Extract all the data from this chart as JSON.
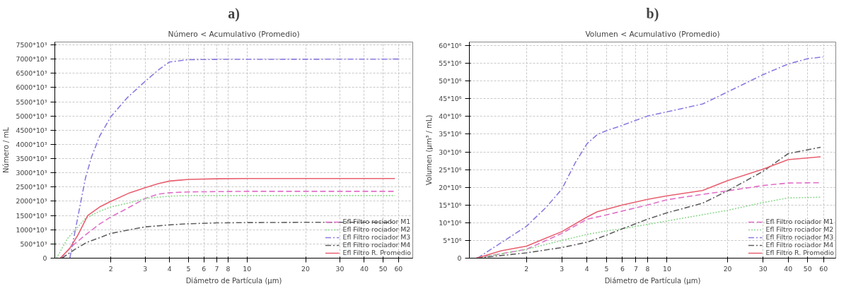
{
  "chart_data": [
    {
      "type": "line",
      "title": "a)",
      "subtitle": "Número < Acumulativo (Promedio)",
      "xlabel": "Diámetro de Partícula (µm)",
      "ylabel": "Número / mL",
      "log": "x",
      "grid": true,
      "legend": "bottom right",
      "xlim": [
        1.03,
        71
      ],
      "xticks": [
        2,
        3,
        4,
        5,
        6,
        7,
        8,
        10,
        20,
        30,
        40,
        50,
        60
      ],
      "ylim": [
        0,
        7600000
      ],
      "yticks": [
        0,
        {
          "value": 500000,
          "label": "500*10³"
        },
        {
          "value": 1000000,
          "label": "1000*10³"
        },
        {
          "value": 1500000,
          "label": "1500*10³"
        },
        {
          "value": 2000000,
          "label": "2000*10³"
        },
        {
          "value": 2500000,
          "label": "2500*10³"
        },
        {
          "value": 3000000,
          "label": "3000*10³"
        },
        {
          "value": 3500000,
          "label": "3500*10³"
        },
        {
          "value": 4000000,
          "label": "4000*10³"
        },
        {
          "value": 4500000,
          "label": "4500*10³"
        },
        {
          "value": 5000000,
          "label": "5000*10³"
        },
        {
          "value": 5500000,
          "label": "5500*10³"
        },
        {
          "value": 6000000,
          "label": "6000*10³"
        },
        {
          "value": 6500000,
          "label": "6500*10³"
        },
        {
          "value": 7000000,
          "label": "7000*10³"
        },
        {
          "value": 7500000,
          "label": "7500*10³"
        }
      ],
      "series": [
        {
          "name": "Efl Filtro rociador M1",
          "color": "#e070c8",
          "line_style": "dashed",
          "x": [
            1.1,
            1.3,
            1.5,
            1.75,
            2,
            2.5,
            3,
            3.5,
            4,
            5,
            10,
            57.5
          ],
          "values": [
            0,
            500000,
            850000,
            1200000,
            1450000,
            1800000,
            2100000,
            2250000,
            2300000,
            2330000,
            2350000,
            2350000
          ]
        },
        {
          "name": "Efl Filtro rociador M2",
          "color": "#90d890",
          "line_style": "dotted",
          "x": [
            1.05,
            1.2,
            1.48,
            1.75,
            2,
            2.5,
            3,
            4,
            5,
            10,
            57.5
          ],
          "values": [
            0,
            700000,
            1400000,
            1650000,
            1800000,
            1950000,
            2100000,
            2180000,
            2200000,
            2200000,
            2200000
          ]
        },
        {
          "name": "Efl Filtro rociador M3",
          "color": "#8a7ce0",
          "line_style": "dashdot",
          "x": [
            1.23,
            1.48,
            1.59,
            1.75,
            2,
            2.44,
            3,
            3.52,
            4,
            5,
            7.3,
            60
          ],
          "values": [
            0,
            2820000,
            3560000,
            4290000,
            4980000,
            5660000,
            6220000,
            6630000,
            6900000,
            6980000,
            6990000,
            7000000
          ]
        },
        {
          "name": "Efl Filtro rociador M4",
          "color": "#606060",
          "line_style": "dashdot",
          "x": [
            1.12,
            1.3,
            1.5,
            2,
            2.5,
            3,
            4,
            5,
            7,
            10,
            20,
            57.5
          ],
          "values": [
            0,
            300000,
            550000,
            870000,
            1000000,
            1100000,
            1170000,
            1210000,
            1240000,
            1250000,
            1260000,
            1260000
          ]
        },
        {
          "name": "Efl Filtro R. Promedio",
          "color": "#e86070",
          "line_style": "solid",
          "x": [
            1.1,
            1.23,
            1.35,
            1.52,
            1.75,
            2,
            2.5,
            3,
            3.5,
            4,
            5,
            7,
            10,
            57.5
          ],
          "values": [
            0,
            350000,
            800000,
            1500000,
            1800000,
            2000000,
            2300000,
            2480000,
            2620000,
            2710000,
            2770000,
            2790000,
            2800000,
            2800000
          ]
        }
      ]
    },
    {
      "type": "line",
      "title": "b)",
      "subtitle": "Volumen < Acumulativo (Promedio)",
      "xlabel": "Diámetro de Partícula (µm)",
      "ylabel": "Volumen (µm³ / mL)",
      "log": "x",
      "grid": true,
      "legend": "bottom right",
      "xlim": [
        1.04,
        69
      ],
      "xticks": [
        2,
        3,
        4,
        5,
        6,
        7,
        8,
        10,
        20,
        30,
        40,
        50,
        60
      ],
      "ylim": [
        0,
        61000000
      ],
      "yticks": [
        0,
        {
          "value": 5000000,
          "label": "5*10⁶"
        },
        {
          "value": 10000000,
          "label": "10*10⁶"
        },
        {
          "value": 15000000,
          "label": "15*10⁶"
        },
        {
          "value": 20000000,
          "label": "20*10⁶"
        },
        {
          "value": 25000000,
          "label": "25*10⁶"
        },
        {
          "value": 30000000,
          "label": "30*10⁶"
        },
        {
          "value": 35000000,
          "label": "35*10⁶"
        },
        {
          "value": 40000000,
          "label": "40*10⁶"
        },
        {
          "value": 45000000,
          "label": "45*10⁶"
        },
        {
          "value": 50000000,
          "label": "50*10⁶"
        },
        {
          "value": 55000000,
          "label": "55*10⁶"
        },
        {
          "value": 60000000,
          "label": "60*10⁶"
        }
      ],
      "series": [
        {
          "name": "Efl Filtro rociador M1",
          "color": "#e070c8",
          "line_style": "dashed",
          "x": [
            1.13,
            2,
            3,
            4,
            5,
            6,
            8,
            10,
            15,
            20,
            30,
            40,
            58
          ],
          "values": [
            0,
            2500000,
            7000000,
            11000000,
            12200000,
            13300000,
            15000000,
            16500000,
            18000000,
            19000000,
            20500000,
            21200000,
            21300000
          ]
        },
        {
          "name": "Efl Filtro rociador M2",
          "color": "#90d890",
          "line_style": "dotted",
          "x": [
            1.13,
            2,
            3,
            4,
            5,
            6,
            10,
            20,
            30,
            40,
            58
          ],
          "values": [
            0,
            2500000,
            5000000,
            6700000,
            7700000,
            8300000,
            10500000,
            13500000,
            15700000,
            17000000,
            17200000
          ]
        },
        {
          "name": "Efl Filtro rociador M3",
          "color": "#8a7ce0",
          "line_style": "dashdot",
          "x": [
            1.14,
            2,
            2.5,
            3,
            3.5,
            4,
            4.5,
            5,
            6,
            8,
            10,
            15,
            20,
            30,
            40,
            50,
            59.7
          ],
          "values": [
            0,
            9000000,
            14300000,
            19500000,
            27000000,
            32300000,
            34900000,
            36000000,
            37500000,
            40100000,
            41300000,
            43500000,
            46900000,
            51800000,
            54800000,
            56300000,
            56800000
          ]
        },
        {
          "name": "Efl Filtro rociador M4",
          "color": "#606060",
          "line_style": "dashdot",
          "x": [
            1.13,
            2,
            3,
            4,
            5,
            6,
            8,
            10,
            15,
            20,
            30,
            40,
            58
          ],
          "values": [
            0,
            1500000,
            3000000,
            4500000,
            6500000,
            8300000,
            11000000,
            12800000,
            15500000,
            19000000,
            24500000,
            29500000,
            31300000
          ]
        },
        {
          "name": "Efl Filtro R. Promedio",
          "color": "#e86070",
          "line_style": "solid",
          "x": [
            1.13,
            1.5,
            2,
            3,
            4,
            4.5,
            6,
            8,
            10,
            15,
            20,
            30,
            40,
            58
          ],
          "values": [
            0,
            2100000,
            3400000,
            7500000,
            11600000,
            13100000,
            15000000,
            16600000,
            17600000,
            19100000,
            21900000,
            25100000,
            27800000,
            28600000
          ]
        }
      ]
    }
  ]
}
